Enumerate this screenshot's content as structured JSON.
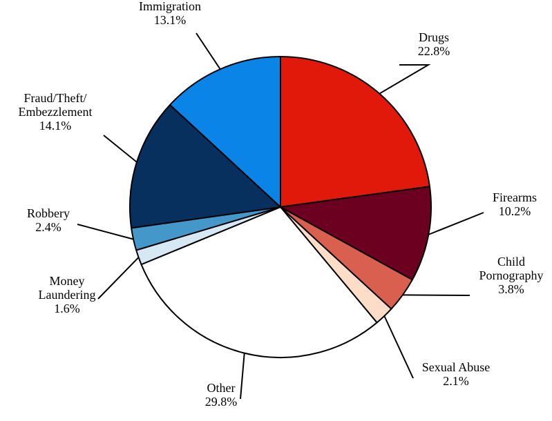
{
  "chart_data": {
    "type": "pie",
    "title": "",
    "start_angle_deg": 0,
    "direction": "clockwise",
    "slices": [
      {
        "label": [
          "Drugs"
        ],
        "value": 22.8,
        "value_label": "22.8%",
        "color": "#E0190A"
      },
      {
        "label": [
          "Firearms"
        ],
        "value": 10.2,
        "value_label": "10.2%",
        "color": "#6B0020"
      },
      {
        "label": [
          "Child",
          "Pornography"
        ],
        "value": 3.8,
        "value_label": "3.8%",
        "color": "#D9604E"
      },
      {
        "label": [
          "Sexual Abuse"
        ],
        "value": 2.1,
        "value_label": "2.1%",
        "color": "#FDDCC8"
      },
      {
        "label": [
          "Other"
        ],
        "value": 29.8,
        "value_label": "29.8%",
        "color": "#FFFFFF"
      },
      {
        "label": [
          "Money",
          "Laundering"
        ],
        "value": 1.6,
        "value_label": "1.6%",
        "color": "#D6E8F4"
      },
      {
        "label": [
          "Robbery"
        ],
        "value": 2.4,
        "value_label": "2.4%",
        "color": "#4497C9"
      },
      {
        "label": [
          "Fraud/Theft/",
          "Embezzlement"
        ],
        "value": 14.1,
        "value_label": "14.1%",
        "color": "#08305E"
      },
      {
        "label": [
          "Immigration"
        ],
        "value": 13.1,
        "value_label": "13.1%",
        "color": "#0A84E6"
      }
    ]
  }
}
